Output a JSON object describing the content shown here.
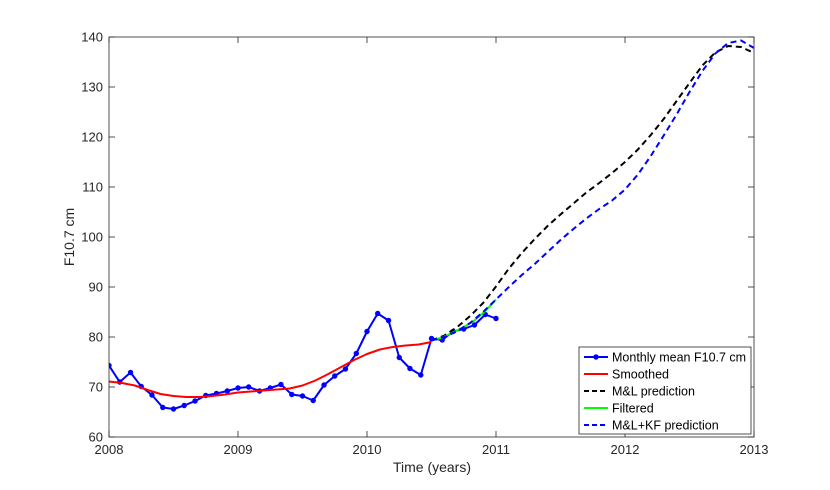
{
  "chart_data": {
    "type": "line",
    "title": "",
    "xlabel": "Time (years)",
    "ylabel": "F10.7 cm",
    "xlim": [
      2008,
      2013
    ],
    "ylim": [
      60,
      140
    ],
    "xticks": [
      2008,
      2009,
      2010,
      2011,
      2012,
      2013
    ],
    "yticks": [
      60,
      70,
      80,
      90,
      100,
      110,
      120,
      130,
      140
    ],
    "grid": false,
    "legend_position": "bottom-right",
    "series": [
      {
        "name": "Monthly mean F10.7 cm",
        "color": "#0000ff",
        "style": "solid-with-markers",
        "points": [
          [
            2008.0,
            74.3
          ],
          [
            2008.083,
            71.0
          ],
          [
            2008.167,
            72.9
          ],
          [
            2008.25,
            70.1
          ],
          [
            2008.333,
            68.4
          ],
          [
            2008.417,
            65.9
          ],
          [
            2008.5,
            65.6
          ],
          [
            2008.583,
            66.3
          ],
          [
            2008.667,
            67.2
          ],
          [
            2008.75,
            68.3
          ],
          [
            2008.833,
            68.7
          ],
          [
            2008.917,
            69.2
          ],
          [
            2009.0,
            69.8
          ],
          [
            2009.083,
            70.0
          ],
          [
            2009.167,
            69.2
          ],
          [
            2009.25,
            69.8
          ],
          [
            2009.333,
            70.5
          ],
          [
            2009.417,
            68.5
          ],
          [
            2009.5,
            68.2
          ],
          [
            2009.583,
            67.3
          ],
          [
            2009.667,
            70.4
          ],
          [
            2009.75,
            72.2
          ],
          [
            2009.833,
            73.6
          ],
          [
            2009.917,
            76.7
          ],
          [
            2010.0,
            81.1
          ],
          [
            2010.083,
            84.7
          ],
          [
            2010.167,
            83.3
          ],
          [
            2010.25,
            75.9
          ],
          [
            2010.333,
            73.7
          ],
          [
            2010.417,
            72.4
          ],
          [
            2010.5,
            79.7
          ],
          [
            2010.583,
            79.4
          ],
          [
            2010.667,
            81.1
          ],
          [
            2010.75,
            81.6
          ],
          [
            2010.833,
            82.4
          ],
          [
            2010.917,
            84.5
          ],
          [
            2011.0,
            83.7
          ]
        ]
      },
      {
        "name": "Smoothed",
        "color": "#ff0000",
        "style": "solid",
        "points": [
          [
            2008.0,
            71.1
          ],
          [
            2008.1,
            70.8
          ],
          [
            2008.2,
            70.3
          ],
          [
            2008.3,
            69.4
          ],
          [
            2008.4,
            68.6
          ],
          [
            2008.5,
            68.2
          ],
          [
            2008.6,
            68.0
          ],
          [
            2008.7,
            68.0
          ],
          [
            2008.8,
            68.2
          ],
          [
            2008.9,
            68.5
          ],
          [
            2009.0,
            68.9
          ],
          [
            2009.1,
            69.1
          ],
          [
            2009.2,
            69.3
          ],
          [
            2009.3,
            69.5
          ],
          [
            2009.4,
            69.7
          ],
          [
            2009.5,
            70.3
          ],
          [
            2009.6,
            71.3
          ],
          [
            2009.7,
            72.6
          ],
          [
            2009.8,
            74.0
          ],
          [
            2009.9,
            75.4
          ],
          [
            2010.0,
            76.6
          ],
          [
            2010.1,
            77.5
          ],
          [
            2010.2,
            78.0
          ],
          [
            2010.3,
            78.3
          ],
          [
            2010.4,
            78.5
          ],
          [
            2010.5,
            79.0
          ]
        ]
      },
      {
        "name": "M&L prediction",
        "color": "#000000",
        "style": "dashed",
        "points": [
          [
            2010.5,
            79.3
          ],
          [
            2010.6,
            80.3
          ],
          [
            2010.7,
            82.0
          ],
          [
            2010.8,
            84.2
          ],
          [
            2010.9,
            86.8
          ],
          [
            2011.0,
            90.1
          ],
          [
            2011.1,
            93.7
          ],
          [
            2011.2,
            96.8
          ],
          [
            2011.3,
            99.6
          ],
          [
            2011.4,
            102.2
          ],
          [
            2011.5,
            104.5
          ],
          [
            2011.6,
            106.7
          ],
          [
            2011.7,
            108.9
          ],
          [
            2011.8,
            110.8
          ],
          [
            2011.9,
            112.8
          ],
          [
            2012.0,
            115.0
          ],
          [
            2012.1,
            117.5
          ],
          [
            2012.2,
            120.4
          ],
          [
            2012.3,
            123.6
          ],
          [
            2012.4,
            127.2
          ],
          [
            2012.5,
            130.8
          ],
          [
            2012.6,
            134.3
          ],
          [
            2012.7,
            136.9
          ],
          [
            2012.8,
            138.2
          ],
          [
            2012.9,
            138.0
          ],
          [
            2013.0,
            136.8
          ]
        ]
      },
      {
        "name": "Filtered",
        "color": "#00ff00",
        "style": "solid",
        "points": [
          [
            2010.5,
            79.3
          ],
          [
            2010.583,
            79.9
          ],
          [
            2010.667,
            80.9
          ],
          [
            2010.75,
            82.0
          ],
          [
            2010.833,
            83.3
          ],
          [
            2010.917,
            85.2
          ],
          [
            2011.0,
            87.5
          ]
        ]
      },
      {
        "name": "M&L+KF prediction",
        "color": "#0000ff",
        "style": "dashed",
        "points": [
          [
            2010.5,
            79.3
          ],
          [
            2010.6,
            80.0
          ],
          [
            2010.7,
            81.2
          ],
          [
            2010.8,
            82.8
          ],
          [
            2010.9,
            85.0
          ],
          [
            2011.0,
            87.5
          ],
          [
            2011.1,
            90.0
          ],
          [
            2011.2,
            92.4
          ],
          [
            2011.3,
            94.6
          ],
          [
            2011.4,
            97.0
          ],
          [
            2011.5,
            99.4
          ],
          [
            2011.6,
            101.6
          ],
          [
            2011.7,
            103.7
          ],
          [
            2011.8,
            105.6
          ],
          [
            2011.9,
            107.3
          ],
          [
            2012.0,
            109.5
          ],
          [
            2012.1,
            112.5
          ],
          [
            2012.2,
            116.2
          ],
          [
            2012.3,
            120.3
          ],
          [
            2012.4,
            124.5
          ],
          [
            2012.5,
            129.0
          ],
          [
            2012.6,
            133.2
          ],
          [
            2012.7,
            136.7
          ],
          [
            2012.8,
            138.8
          ],
          [
            2012.9,
            139.3
          ],
          [
            2013.0,
            137.8
          ]
        ]
      }
    ]
  }
}
